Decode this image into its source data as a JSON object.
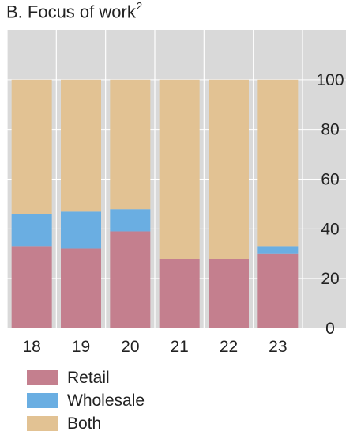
{
  "chart_data": {
    "type": "bar",
    "stacked": true,
    "title": "B. Focus of work",
    "title_superscript": "2",
    "categories": [
      "18",
      "19",
      "20",
      "21",
      "22",
      "23"
    ],
    "series": [
      {
        "name": "Retail",
        "color": "#c47f8e",
        "values": [
          33,
          32,
          39,
          28,
          28,
          30
        ]
      },
      {
        "name": "Wholesale",
        "color": "#6aaee2",
        "values": [
          13,
          15,
          9,
          0,
          0,
          3
        ]
      },
      {
        "name": "Both",
        "color": "#e2c293",
        "values": [
          54,
          53,
          52,
          72,
          72,
          67
        ]
      }
    ],
    "ylim": [
      0,
      120
    ],
    "yticks": [
      0,
      20,
      40,
      60,
      80,
      100
    ],
    "ytick_labels": [
      "0",
      "20",
      "40",
      "60",
      "80",
      "100"
    ],
    "y_axis_side": "right",
    "grid": true,
    "legend_position": "bottom-left",
    "plot_background": "#d9d9d9"
  }
}
